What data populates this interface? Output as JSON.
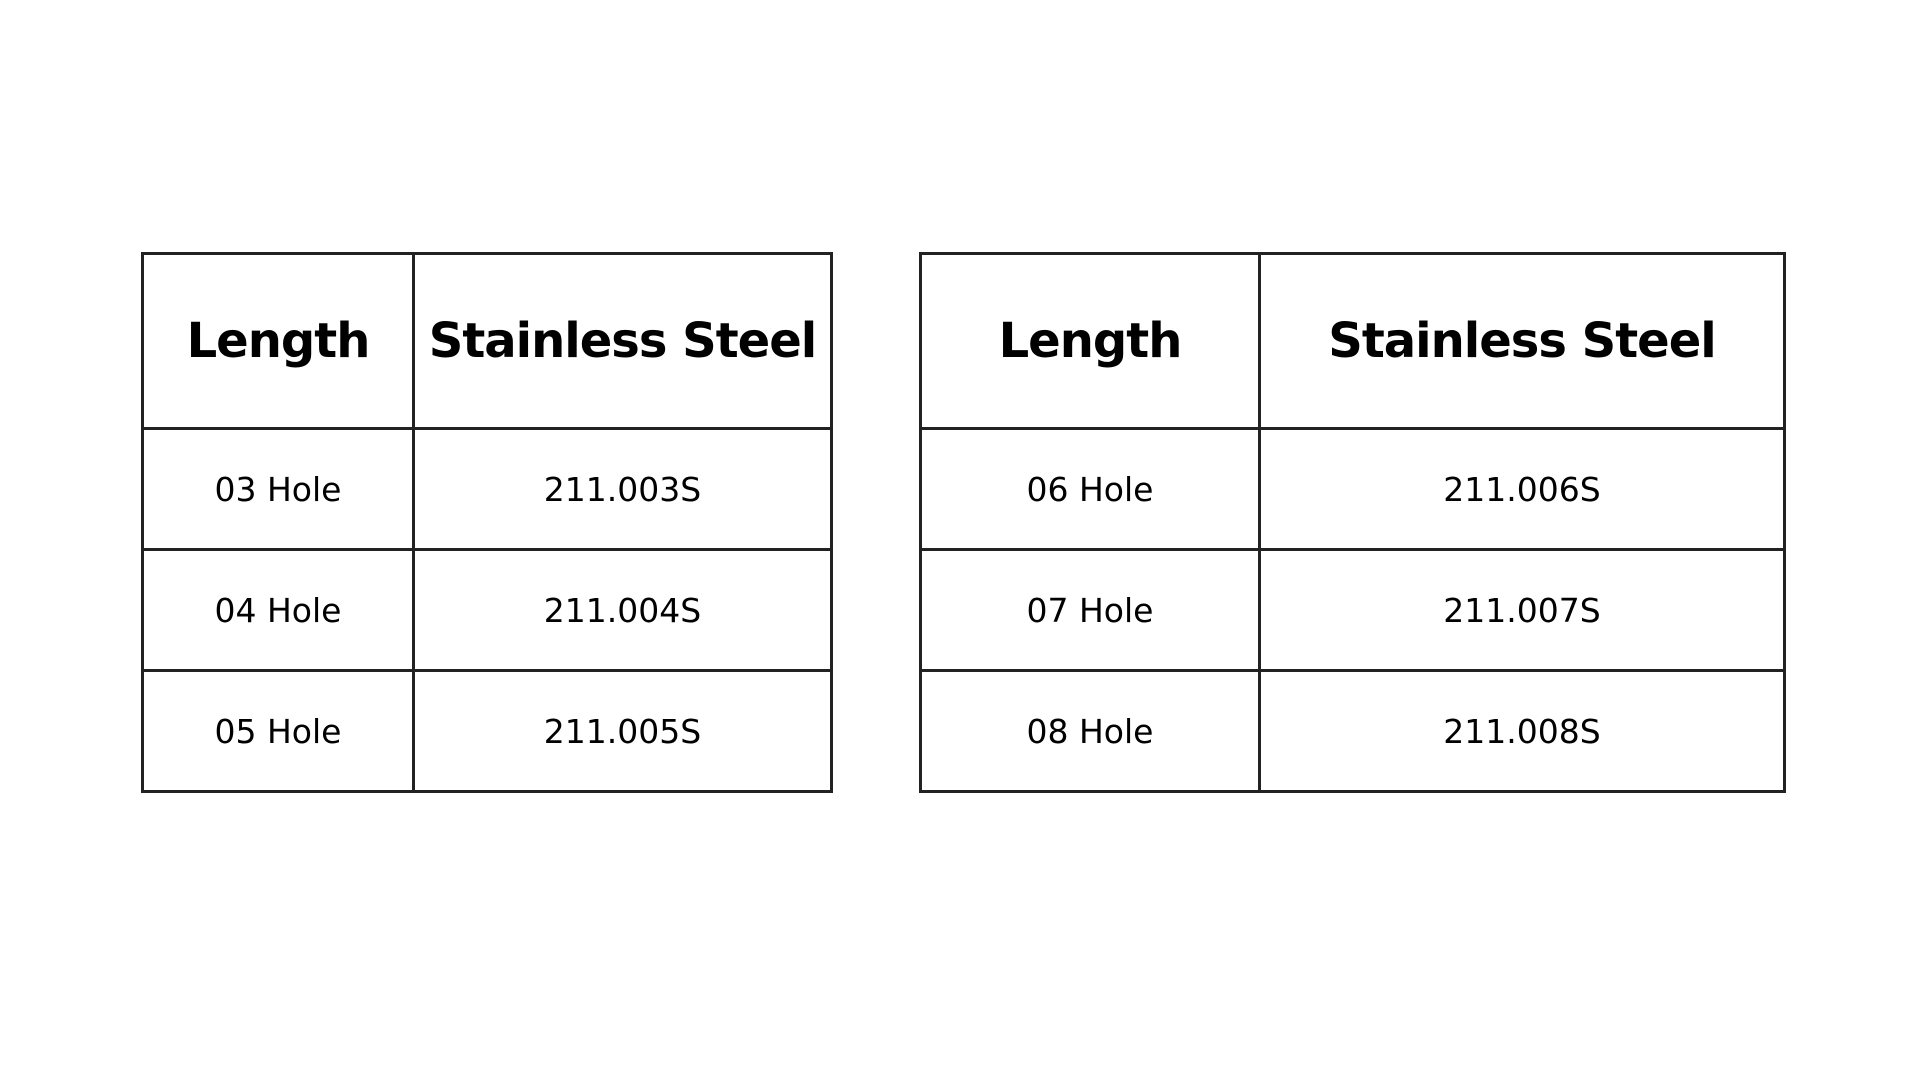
{
  "tables": [
    {
      "headers": [
        "Length",
        "Stainless Steel"
      ],
      "rows": [
        [
          "03 Hole",
          "211.003S"
        ],
        [
          "04 Hole",
          "211.004S"
        ],
        [
          "05 Hole",
          "211.005S"
        ]
      ]
    },
    {
      "headers": [
        "Length",
        "Stainless Steel"
      ],
      "rows": [
        [
          "06 Hole",
          "211.006S"
        ],
        [
          "07 Hole",
          "211.007S"
        ],
        [
          "08 Hole",
          "211.008S"
        ]
      ]
    }
  ]
}
